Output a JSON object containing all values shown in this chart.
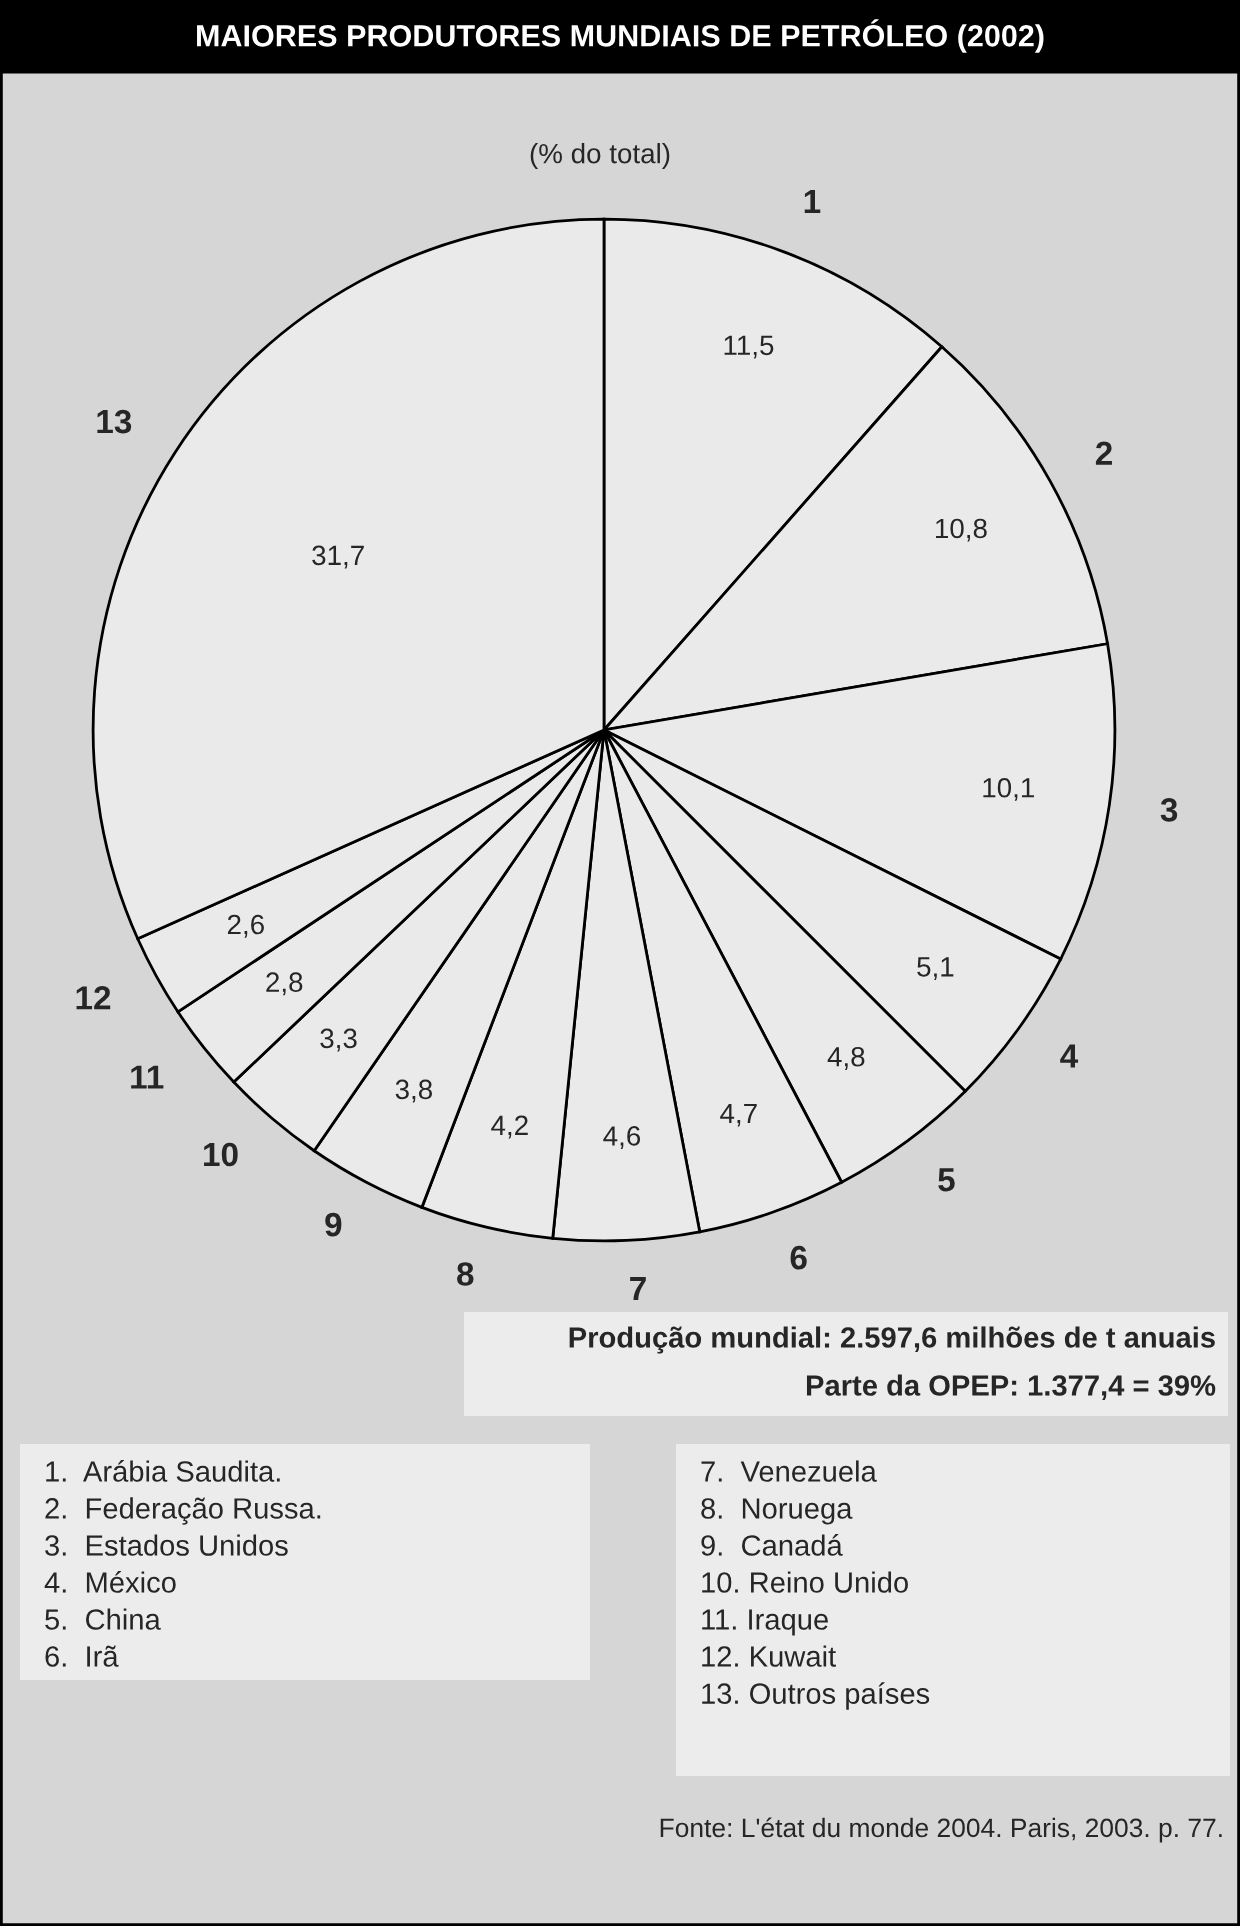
{
  "chart_data": {
    "type": "pie",
    "title": "MAIORES PRODUTORES MUNDIAIS DE PETRÓLEO (2002)",
    "subtitle": "(% do total)",
    "categories": [
      "1",
      "2",
      "3",
      "4",
      "5",
      "6",
      "7",
      "8",
      "9",
      "10",
      "11",
      "12",
      "13"
    ],
    "values": [
      11.5,
      10.8,
      10.1,
      5.1,
      4.8,
      4.7,
      4.6,
      4.2,
      3.8,
      3.3,
      2.8,
      2.6,
      31.7
    ],
    "value_labels": [
      "11,5",
      "10,8",
      "10,1",
      "5,1",
      "4,8",
      "4,7",
      "4,6",
      "4,2",
      "3,8",
      "3,3",
      "2,8",
      "2,6",
      "31,7"
    ],
    "colors": [
      "#eaeaea",
      "#eaeaea",
      "#eaeaea",
      "#eaeaea",
      "#eaeaea",
      "#eaeaea",
      "#eaeaea",
      "#eaeaea",
      "#eaeaea",
      "#eaeaea",
      "#eaeaea",
      "#eaeaea",
      "#eaeaea"
    ],
    "annotations": [
      "Produção mundial: 2.597,6 milhões de t anuais",
      "Parte da OPEP: 1.377,4 = 39%",
      "1.  Arábia Saudita.",
      "2.  Federação Russa.",
      "3.  Estados Unidos",
      "4.  México",
      "5.  China",
      "6.  Irã",
      "7.  Venezuela",
      "8.  Noruega",
      "9.  Canadá",
      "10. Reino Unido",
      "11. Iraque",
      "12. Kuwait",
      "13. Outros países",
      "Fonte: L'état du monde 2004. Paris, 2003. p. 77."
    ]
  }
}
